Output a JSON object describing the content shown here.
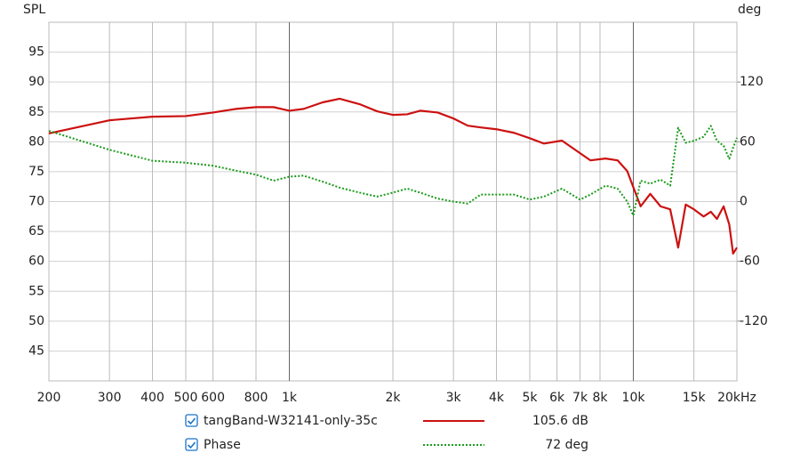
{
  "chart_data": {
    "type": "line",
    "y_label": "SPL",
    "y2_label": "deg",
    "log_x": true,
    "grid": true,
    "x": [
      200,
      300,
      400,
      500,
      600,
      700,
      800,
      900,
      1000,
      1100,
      1250,
      1400,
      1600,
      1800,
      2000,
      2200,
      2400,
      2700,
      3000,
      3300,
      3600,
      4000,
      4500,
      5000,
      5500,
      6200,
      7000,
      7500,
      8300,
      9000,
      9600,
      10000,
      10500,
      11200,
      12000,
      12800,
      13500,
      14200,
      15000,
      16000,
      16800,
      17500,
      18300,
      19000,
      19500,
      20000
    ],
    "series": [
      {
        "name": "tangBand-W32141-only-35c",
        "color": "#cc1111",
        "style": "solid",
        "legend_value": "105.6 dB",
        "values": [
          81.4,
          83.6,
          84.2,
          84.3,
          84.9,
          85.5,
          85.8,
          85.8,
          85.2,
          85.5,
          86.6,
          87.2,
          86.3,
          85.1,
          84.5,
          84.6,
          85.2,
          84.9,
          83.9,
          82.7,
          82.4,
          82.1,
          81.5,
          80.6,
          79.7,
          80.2,
          78.1,
          76.9,
          77.2,
          76.9,
          75.1,
          72.4,
          69.2,
          71.3,
          69.2,
          68.7,
          62.3,
          69.5,
          68.7,
          67.5,
          68.3,
          67.1,
          69.2,
          66.2,
          61.3,
          62.3
        ]
      },
      {
        "name": "Phase",
        "color": "#1a9a1a",
        "style": "dotted",
        "axis": "y2",
        "legend_value": "72 deg",
        "values": [
          71,
          52,
          41,
          39,
          36,
          31,
          27,
          21,
          25,
          26,
          20,
          14,
          9,
          5,
          9,
          13,
          9,
          3,
          0,
          -2,
          7,
          7,
          7,
          2,
          5,
          13,
          2,
          7,
          16,
          13,
          0,
          -14,
          21,
          18,
          22,
          16,
          74,
          59,
          61,
          65,
          76,
          61,
          56,
          43,
          54,
          64
        ]
      }
    ],
    "xlim": [
      200,
      20000
    ],
    "xticks": [
      200,
      300,
      400,
      500,
      600,
      800,
      {
        "value": 1000,
        "label": "1k"
      },
      {
        "value": 2000,
        "label": "2k"
      },
      {
        "value": 3000,
        "label": "3k"
      },
      {
        "value": 4000,
        "label": "4k"
      },
      {
        "value": 5000,
        "label": "5k"
      },
      {
        "value": 6000,
        "label": "6k"
      },
      {
        "value": 7000,
        "label": "7k"
      },
      {
        "value": 8000,
        "label": "8k"
      },
      {
        "value": 10000,
        "label": "10k"
      },
      {
        "value": 15000,
        "label": "15k"
      },
      {
        "value": 20000,
        "label": "20kHz"
      }
    ],
    "ylim": [
      40,
      100
    ],
    "yticks": [
      45,
      50,
      55,
      60,
      65,
      70,
      75,
      80,
      85,
      90,
      95
    ],
    "y2lim": [
      -180,
      180
    ],
    "y2ticks": [
      -120,
      -60,
      0,
      60,
      120
    ]
  }
}
